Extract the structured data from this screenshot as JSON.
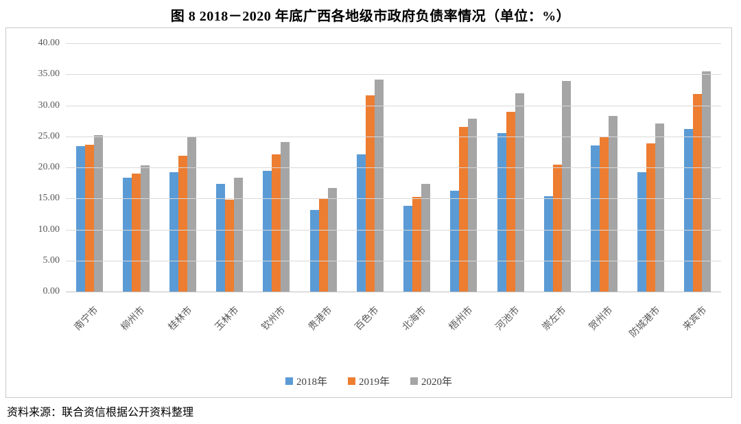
{
  "title": "图 8  2018－2020 年底广西各地级市政府负债率情况（单位：%）",
  "source_note": "资料来源：联合资信根据公开资料整理",
  "chart_data": {
    "type": "bar",
    "title": "图 8  2018－2020 年底广西各地级市政府负债率情况（单位：%）",
    "unit": "%",
    "categories": [
      "南宁市",
      "柳州市",
      "桂林市",
      "玉林市",
      "钦州市",
      "贵港市",
      "百色市",
      "北海市",
      "梧州市",
      "河池市",
      "崇左市",
      "贺州市",
      "防城港市",
      "来宾市"
    ],
    "series": [
      {
        "name": "2018年",
        "color": "#5B9BD5",
        "values": [
          23.4,
          18.4,
          19.2,
          17.4,
          19.5,
          13.2,
          22.1,
          13.8,
          16.2,
          25.5,
          15.4,
          23.5,
          19.2,
          26.2
        ]
      },
      {
        "name": "2019年",
        "color": "#ED7D31",
        "values": [
          23.7,
          19.0,
          21.9,
          14.8,
          22.1,
          14.9,
          31.6,
          15.3,
          26.5,
          29.0,
          20.5,
          25.0,
          23.9,
          31.8
        ]
      },
      {
        "name": "2020年",
        "color": "#A5A5A5",
        "values": [
          25.2,
          20.3,
          25.0,
          18.3,
          24.1,
          16.7,
          34.1,
          17.3,
          27.8,
          31.9,
          33.9,
          28.3,
          27.1,
          35.5
        ]
      }
    ],
    "ylim": [
      0,
      40
    ],
    "y_tick_step": 5,
    "y_ticks": [
      "0.00",
      "5.00",
      "10.00",
      "15.00",
      "20.00",
      "25.00",
      "30.00",
      "35.00",
      "40.00"
    ],
    "grid": "horizontal",
    "legend_position": "bottom",
    "xlabel": "",
    "ylabel": "",
    "gridline_color": "#D9D9D9",
    "axis_line_color": "#BFBFBF",
    "tick_label_color": "#595959"
  }
}
